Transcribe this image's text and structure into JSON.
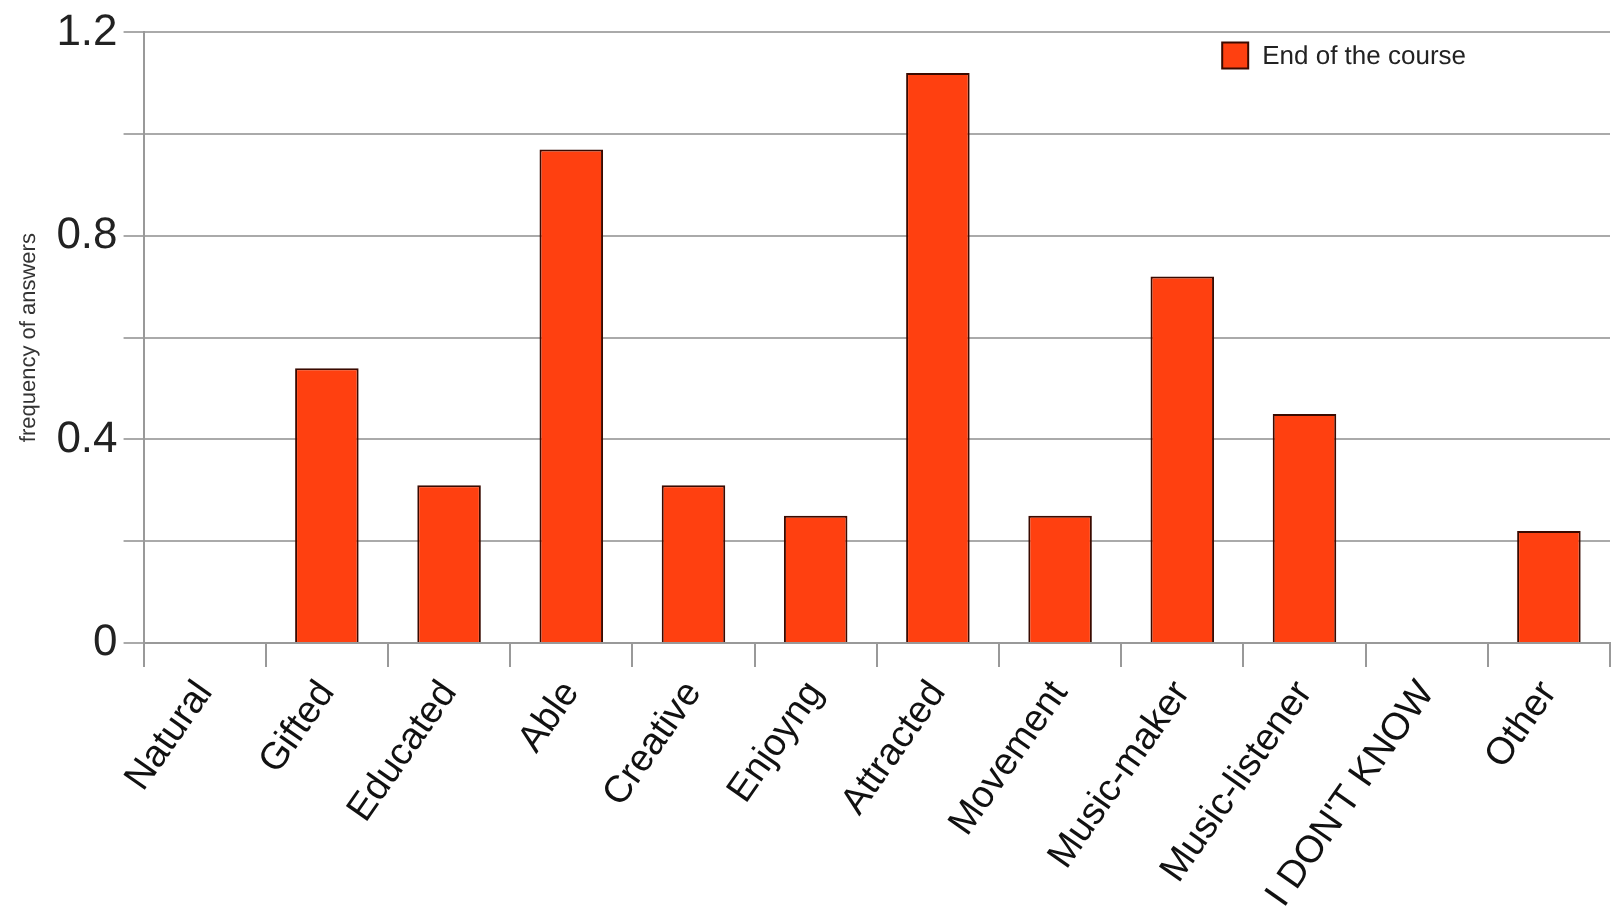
{
  "chart_data": {
    "type": "bar",
    "ylabel": "frequency of answers",
    "categories": [
      "Natural",
      "Gifted",
      "Educated",
      "Able",
      "Creative",
      "Enjoyng",
      "Attracted",
      "Movement",
      "Music-maker",
      "Music-listener",
      "I DON'T KNOW",
      "Other"
    ],
    "series": [
      {
        "name": "End of the course",
        "color": "#ff4010",
        "values": [
          0,
          0.54,
          0.31,
          0.97,
          0.31,
          0.25,
          1.12,
          0.25,
          0.72,
          0.45,
          0,
          0.22
        ]
      }
    ],
    "ylim": [
      0,
      1.2
    ],
    "yticks": [
      0,
      {
        "value": 0.2,
        "label": null
      },
      0.4,
      {
        "value": 0.6,
        "label": null
      },
      0.8,
      {
        "value": 1.0,
        "label": null
      },
      1.2
    ],
    "grid": "y",
    "legend": "top right"
  }
}
